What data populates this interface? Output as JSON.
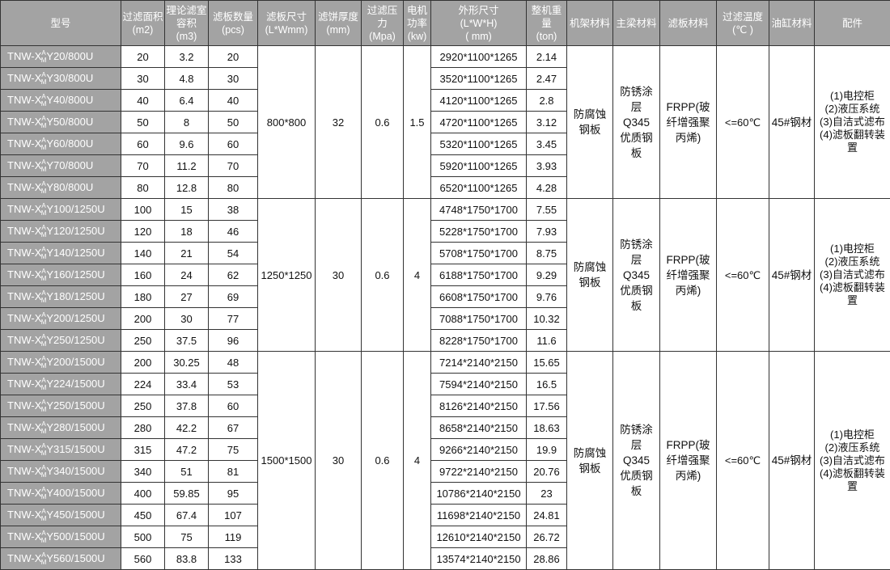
{
  "headers": [
    "型号",
    "过滤面积\n(m2)",
    "理论滤室\n容积\n(m3)",
    "滤板数量\n(pcs)",
    "滤板尺寸\n(L*Wmm)",
    "滤饼厚度\n(mm)",
    "过滤压\n力\n(Mpa)",
    "电机\n功率\n(kw)",
    "外形尺寸\n(L*W*H)\n( mm)",
    "整机重\n量\n(ton)",
    "机架材料",
    "主梁材料",
    "滤板材料",
    "过滤温度\n(℃ )",
    "油缸材料",
    "配件"
  ],
  "model_prefix": "TNW-X",
  "model_sup": "A",
  "model_sub": "M",
  "groups": [
    {
      "plate_size": "800*800",
      "cake_thickness": "32",
      "pressure": "0.6",
      "power": "1.5",
      "frame_material": "防腐蚀\n钢板",
      "beam_material": "防锈涂\n层\nQ345\n优质钢\n板",
      "plate_material": "FRPP(玻\n纤增强聚\n丙烯)",
      "temperature": "<=60℃",
      "cylinder_material": "45#钢材",
      "accessories": "(1)电控柜\n(2)液压系统\n(3)自洁式滤布\n(4)滤板翻转装\n置",
      "rows": [
        [
          "Y20/800U",
          "20",
          "3.2",
          "20",
          "2920*1100*1265",
          "2.14"
        ],
        [
          "Y30/800U",
          "30",
          "4.8",
          "30",
          "3520*1100*1265",
          "2.47"
        ],
        [
          "Y40/800U",
          "40",
          "6.4",
          "40",
          "4120*1100*1265",
          "2.8"
        ],
        [
          "Y50/800U",
          "50",
          "8",
          "50",
          "4720*1100*1265",
          "3.12"
        ],
        [
          "Y60/800U",
          "60",
          "9.6",
          "60",
          "5320*1100*1265",
          "3.45"
        ],
        [
          "Y70/800U",
          "70",
          "11.2",
          "70",
          "5920*1100*1265",
          "3.93"
        ],
        [
          "Y80/800U",
          "80",
          "12.8",
          "80",
          "6520*1100*1265",
          "4.28"
        ]
      ]
    },
    {
      "plate_size": "1250*1250",
      "cake_thickness": "30",
      "pressure": "0.6",
      "power": "4",
      "frame_material": "防腐蚀\n钢板",
      "beam_material": "防锈涂\n层\nQ345\n优质钢\n板",
      "plate_material": "FRPP(玻\n纤增强聚\n丙烯)",
      "temperature": "<=60℃",
      "cylinder_material": "45#钢材",
      "accessories": "(1)电控柜\n(2)液压系统\n(3)自洁式滤布\n(4)滤板翻转装\n置",
      "rows": [
        [
          "Y100/1250U",
          "100",
          "15",
          "38",
          "4748*1750*1700",
          "7.55"
        ],
        [
          "Y120/1250U",
          "120",
          "18",
          "46",
          "5228*1750*1700",
          "7.93"
        ],
        [
          "Y140/1250U",
          "140",
          "21",
          "54",
          "5708*1750*1700",
          "8.75"
        ],
        [
          "Y160/1250U",
          "160",
          "24",
          "62",
          "6188*1750*1700",
          "9.29"
        ],
        [
          "Y180/1250U",
          "180",
          "27",
          "69",
          "6608*1750*1700",
          "9.76"
        ],
        [
          "Y200/1250U",
          "200",
          "30",
          "77",
          "7088*1750*1700",
          "10.32"
        ],
        [
          "Y250/1250U",
          "250",
          "37.5",
          "96",
          "8228*1750*1700",
          "11.6"
        ]
      ]
    },
    {
      "plate_size": "1500*1500",
      "cake_thickness": "30",
      "pressure": "0.6",
      "power": "4",
      "frame_material": "防腐蚀\n钢板",
      "beam_material": "防锈涂\n层\nQ345\n优质钢\n板",
      "plate_material": "FRPP(玻\n纤增强聚\n丙烯)",
      "temperature": "<=60℃",
      "cylinder_material": "45#钢材",
      "accessories": "(1)电控柜\n(2)液压系统\n(3)自洁式滤布\n(4)滤板翻转装\n置",
      "rows": [
        [
          "Y200/1500U",
          "200",
          "30.25",
          "48",
          "7214*2140*2150",
          "15.65"
        ],
        [
          "Y224/1500U",
          "224",
          "33.4",
          "53",
          "7594*2140*2150",
          "16.5"
        ],
        [
          "Y250/1500U",
          "250",
          "37.8",
          "60",
          "8126*2140*2150",
          "17.56"
        ],
        [
          "Y280/1500U",
          "280",
          "42.2",
          "67",
          "8658*2140*2150",
          "18.63"
        ],
        [
          "Y315/1500U",
          "315",
          "47.2",
          "75",
          "9266*2140*2150",
          "19.9"
        ],
        [
          "Y340/1500U",
          "340",
          "51",
          "81",
          "9722*2140*2150",
          "20.76"
        ],
        [
          "Y400/1500U",
          "400",
          "59.85",
          "95",
          "10786*2140*2150",
          "23"
        ],
        [
          "Y450/1500U",
          "450",
          "67.4",
          "107",
          "11698*2140*2150",
          "24.81"
        ],
        [
          "Y500/1500U",
          "500",
          "75",
          "119",
          "12610*2140*2150",
          "26.72"
        ],
        [
          "Y560/1500U",
          "560",
          "83.8",
          "133",
          "13574*2140*2150",
          "28.86"
        ]
      ]
    }
  ]
}
